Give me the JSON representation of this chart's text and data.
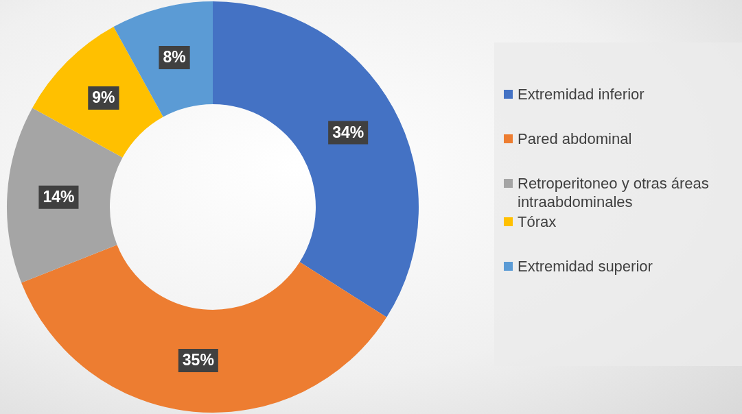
{
  "chart_data": {
    "type": "donut",
    "categories": [
      "Extremidad inferior",
      "Pared abdominal",
      "Retroperitoneo y otras áreas intraabdominales",
      "Tórax",
      "Extremidad superior"
    ],
    "values": [
      34,
      35,
      14,
      9,
      8
    ],
    "colors": [
      "#4472c4",
      "#ed7d31",
      "#a5a5a5",
      "#ffc000",
      "#5b9bd5"
    ],
    "value_labels": [
      "34%",
      "35%",
      "14%",
      "9%",
      "8%"
    ],
    "legend": "right"
  }
}
